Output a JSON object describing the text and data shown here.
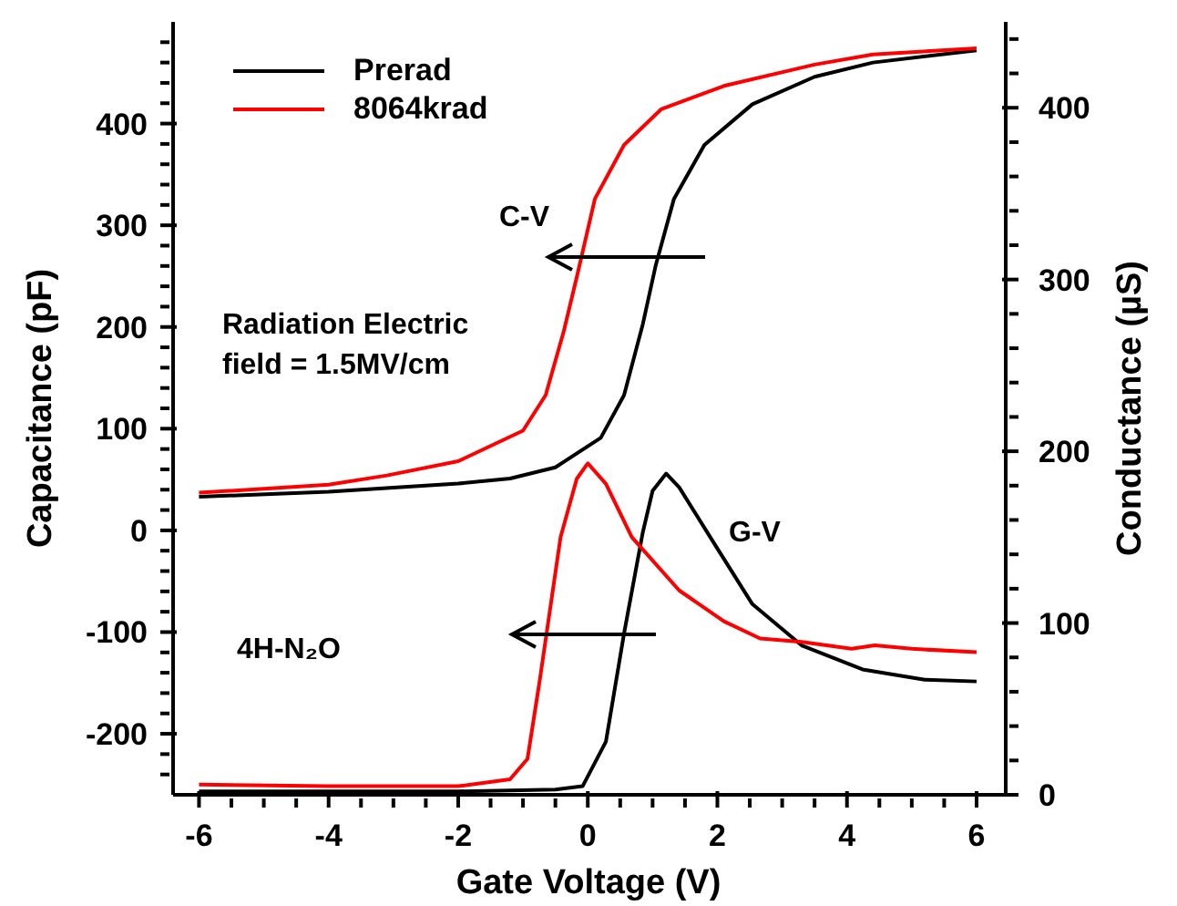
{
  "chart_data": {
    "type": "line",
    "xlabel": "Gate Voltage (V)",
    "ylabel": "Capacitance (pF)",
    "y2label": "Conductance (µS)",
    "xlim": [
      -6.4,
      6.45
    ],
    "ylim": [
      -260,
      500
    ],
    "y2lim": [
      0,
      450
    ],
    "xticks": [
      -6,
      {
        "value": -5.5,
        "label": null
      },
      {
        "value": -5,
        "label": null
      },
      {
        "value": -4.5,
        "label": null
      },
      -4,
      {
        "value": -3.5,
        "label": null
      },
      {
        "value": -3,
        "label": null
      },
      {
        "value": -2.5,
        "label": null
      },
      -2,
      {
        "value": -1.5,
        "label": null
      },
      {
        "value": -1,
        "label": null
      },
      {
        "value": -0.5,
        "label": null
      },
      0,
      {
        "value": 0.5,
        "label": null
      },
      {
        "value": 1,
        "label": null
      },
      {
        "value": 1.5,
        "label": null
      },
      2,
      {
        "value": 2.5,
        "label": null
      },
      {
        "value": 3,
        "label": null
      },
      {
        "value": 3.5,
        "label": null
      },
      4,
      {
        "value": 4.5,
        "label": null
      },
      {
        "value": 5,
        "label": null
      },
      {
        "value": 5.5,
        "label": null
      },
      6
    ],
    "yticks": [
      {
        "value": -240,
        "label": null
      },
      {
        "value": -220,
        "label": null
      },
      -200,
      {
        "value": -180,
        "label": null
      },
      {
        "value": -160,
        "label": null
      },
      {
        "value": -140,
        "label": null
      },
      {
        "value": -120,
        "label": null
      },
      -100,
      {
        "value": -80,
        "label": null
      },
      {
        "value": -60,
        "label": null
      },
      {
        "value": -40,
        "label": null
      },
      {
        "value": -20,
        "label": null
      },
      0,
      {
        "value": 20,
        "label": null
      },
      {
        "value": 40,
        "label": null
      },
      {
        "value": 60,
        "label": null
      },
      {
        "value": 80,
        "label": null
      },
      100,
      {
        "value": 120,
        "label": null
      },
      {
        "value": 140,
        "label": null
      },
      {
        "value": 160,
        "label": null
      },
      {
        "value": 180,
        "label": null
      },
      200,
      {
        "value": 220,
        "label": null
      },
      {
        "value": 240,
        "label": null
      },
      {
        "value": 260,
        "label": null
      },
      {
        "value": 280,
        "label": null
      },
      300,
      {
        "value": 320,
        "label": null
      },
      {
        "value": 340,
        "label": null
      },
      {
        "value": 360,
        "label": null
      },
      {
        "value": 380,
        "label": null
      },
      400,
      {
        "value": 420,
        "label": null
      },
      {
        "value": 440,
        "label": null
      },
      {
        "value": 460,
        "label": null
      },
      {
        "value": 480,
        "label": null
      }
    ],
    "y2ticks": [
      0,
      {
        "value": 20,
        "label": null
      },
      {
        "value": 40,
        "label": null
      },
      {
        "value": 60,
        "label": null
      },
      {
        "value": 80,
        "label": null
      },
      100,
      {
        "value": 120,
        "label": null
      },
      {
        "value": 140,
        "label": null
      },
      {
        "value": 160,
        "label": null
      },
      {
        "value": 180,
        "label": null
      },
      200,
      {
        "value": 220,
        "label": null
      },
      {
        "value": 240,
        "label": null
      },
      {
        "value": 260,
        "label": null
      },
      {
        "value": 280,
        "label": null
      },
      300,
      {
        "value": 320,
        "label": null
      },
      {
        "value": 340,
        "label": null
      },
      {
        "value": 360,
        "label": null
      },
      {
        "value": 380,
        "label": null
      },
      400,
      {
        "value": 420,
        "label": null
      },
      {
        "value": 440,
        "label": null
      }
    ],
    "legend": "top left",
    "series": [
      {
        "name": "Prerad",
        "color": "#000000",
        "x": [
          -6,
          -4,
          -3,
          -2,
          -1.2,
          -0.5,
          0.2,
          0.56,
          0.85,
          1.05,
          1.33,
          1.8,
          2.54,
          3.5,
          4.4,
          6
        ],
        "values": [
          33,
          38,
          42,
          46,
          51,
          62,
          91,
          133,
          203,
          261,
          326,
          379,
          419,
          446,
          460,
          472
        ]
      },
      {
        "name": "8064krad",
        "color": "#ff0000",
        "x": [
          -6,
          -4,
          -3.1,
          -2,
          -1,
          -0.65,
          -0.37,
          -0.17,
          0.11,
          0.56,
          1.13,
          2.1,
          3.5,
          4.4,
          6
        ],
        "values": [
          37,
          45,
          54,
          68,
          98,
          133,
          196,
          249,
          326,
          379,
          414,
          437,
          458,
          468,
          474
        ]
      },
      {
        "color": "#000000",
        "axis": "y2",
        "x": [
          -6,
          -2,
          -0.5,
          -0.08,
          0.28,
          0.56,
          0.85,
          1.0,
          1.21,
          1.41,
          1.89,
          2.54,
          3.3,
          4.24,
          5.2,
          6
        ],
        "values": [
          2,
          2,
          3,
          5,
          31,
          94,
          153,
          177,
          187,
          179,
          150,
          111,
          87,
          73,
          67,
          66
        ]
      },
      {
        "color": "#ff0000",
        "axis": "y2",
        "x": [
          -6,
          -4,
          -2,
          -1.2,
          -0.93,
          -0.74,
          -0.42,
          -0.17,
          0,
          0.28,
          0.68,
          1.41,
          2.1,
          2.66,
          3.3,
          4.07,
          4.43,
          5.0,
          6
        ],
        "values": [
          6,
          5,
          5,
          9,
          21,
          67,
          150,
          184,
          193,
          181,
          150,
          119,
          101,
          91,
          89,
          85,
          87,
          85,
          83
        ]
      }
    ],
    "annotations": [
      "C-V",
      "Radiation Electric field = 1.5MV/cm",
      "G-V",
      "4H-N₂O"
    ]
  }
}
